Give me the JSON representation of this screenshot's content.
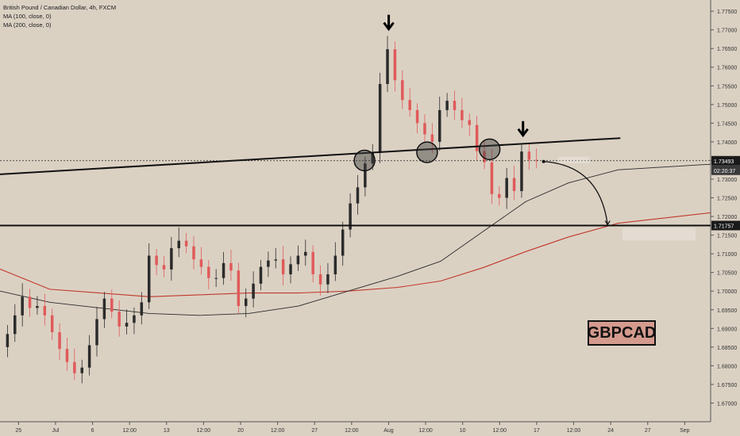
{
  "legend": {
    "symbol_line": "British Pound / Canadian Dollar, 4h, FXCM",
    "ma100_line": "MA (100, close, 0)",
    "ma200_line": "MA (200, close, 0)"
  },
  "badge": {
    "label": "GBPCAD"
  },
  "colors": {
    "background": "#dbd1c3",
    "up_candle": "#2b2b2b",
    "down_candle": "#e05a5a",
    "ma100": "#2a2a2a",
    "ma200": "#c0392b",
    "annotation": "#111111"
  },
  "chart_data": {
    "type": "candlestick",
    "symbol": "British Pound / Canadian Dollar",
    "timeframe": "4h",
    "source": "FXCM",
    "ylim": [
      1.665,
      1.78
    ],
    "y_ticks": [
      "1.77500",
      "1.77000",
      "1.76500",
      "1.76000",
      "1.75500",
      "1.75000",
      "1.74500",
      "1.74000",
      "1.73500",
      "1.73000",
      "1.72500",
      "1.72000",
      "1.71500",
      "1.71000",
      "1.70500",
      "1.70000",
      "1.69500",
      "1.69000",
      "1.68500",
      "1.68000",
      "1.67500",
      "1.67000"
    ],
    "x_ticks": [
      "25",
      "Jul",
      "6",
      "12:00",
      "13",
      "12:00",
      "20",
      "12:00",
      "27",
      "12:00",
      "Aug",
      "12:00",
      "10",
      "12:00",
      "17",
      "12:00",
      "24",
      "27",
      "Sep"
    ],
    "price_label": "1.73493",
    "countdown_label": "02:20:37",
    "level_label": "1.71757",
    "current_price": 1.73493,
    "support_level": 1.71757,
    "trendline": {
      "from": 1.7313,
      "to": 1.741
    },
    "ma100": [
      1.7,
      1.697,
      1.6955,
      1.694,
      1.6935,
      1.694,
      1.696,
      1.7,
      1.704,
      1.708,
      1.716,
      1.724,
      1.729,
      1.7325,
      1.734
    ],
    "ma200": [
      1.7059,
      1.7005,
      1.6995,
      1.6985,
      1.699,
      1.6995,
      1.6995,
      1.7,
      1.701,
      1.7027,
      1.7063,
      1.7106,
      1.7145,
      1.7182,
      1.721
    ],
    "ma_x_fraction": [
      0,
      0.07,
      0.14,
      0.21,
      0.28,
      0.35,
      0.42,
      0.49,
      0.56,
      0.62,
      0.68,
      0.74,
      0.8,
      0.87,
      1
    ],
    "path": [
      1.685,
      1.6885,
      1.6935,
      1.6985,
      1.6955,
      1.696,
      1.6935,
      1.689,
      1.6845,
      1.681,
      1.678,
      1.6795,
      1.6855,
      1.6925,
      1.698,
      1.6945,
      1.6905,
      1.6915,
      1.6935,
      1.697,
      1.7095,
      1.707,
      1.7058,
      1.7115,
      1.7135,
      1.712,
      1.7085,
      1.7065,
      1.7035,
      1.7035,
      1.7075,
      1.7055,
      1.696,
      1.698,
      1.702,
      1.7065,
      1.7082,
      1.7085,
      1.7045,
      1.7072,
      1.7095,
      1.7105,
      1.7045,
      1.7018,
      1.7045,
      1.7095,
      1.7165,
      1.7235,
      1.7278,
      1.7342,
      1.737,
      1.7555,
      1.7648,
      1.7565,
      1.7512,
      1.7485,
      1.745,
      1.742,
      1.74,
      1.7485,
      1.751,
      1.7485,
      1.7458,
      1.7445,
      1.7375,
      1.7345,
      1.726,
      1.725,
      1.7303,
      1.7268,
      1.7374,
      1.7352,
      1.735
    ],
    "path_end_fraction": 0.755,
    "projection": {
      "to_price": 1.7178,
      "x_fraction": 0.855
    },
    "highlights": [
      {
        "x_fraction": 0.513,
        "price": 1.735
      },
      {
        "x_fraction": 0.601,
        "price": 1.7372
      },
      {
        "x_fraction": 0.689,
        "price": 1.738
      }
    ],
    "arrows": [
      {
        "x_fraction": 0.547,
        "price": 1.7715
      },
      {
        "x_fraction": 0.736,
        "price": 1.743
      }
    ]
  }
}
